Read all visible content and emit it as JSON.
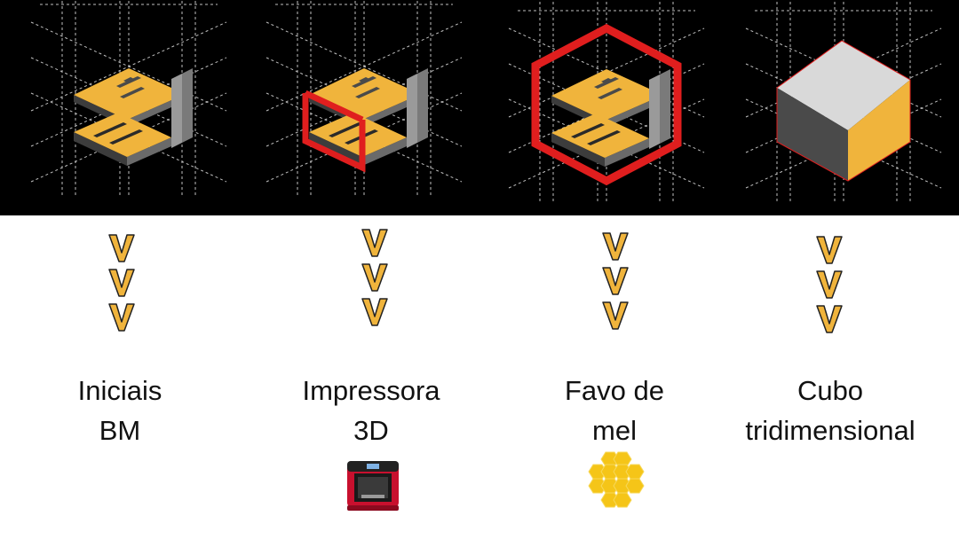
{
  "panels": [
    {
      "id": "iniciais-bm",
      "label_line1": "Iniciais",
      "label_line2": "BM"
    },
    {
      "id": "impressora-3d",
      "label_line1": "Impressora",
      "label_line2": "3D"
    },
    {
      "id": "favo-de-mel",
      "label_line1": "Favo de",
      "label_line2": "mel"
    },
    {
      "id": "cubo",
      "label_line1": "Cubo",
      "label_line2": "tridimensional"
    }
  ],
  "colors": {
    "gold": "#f0b43c",
    "gray": "#9a9a9a",
    "dark_gray": "#4a4a4a",
    "red": "#e01e1e",
    "light_gray": "#d9d9d9",
    "black": "#000000"
  }
}
